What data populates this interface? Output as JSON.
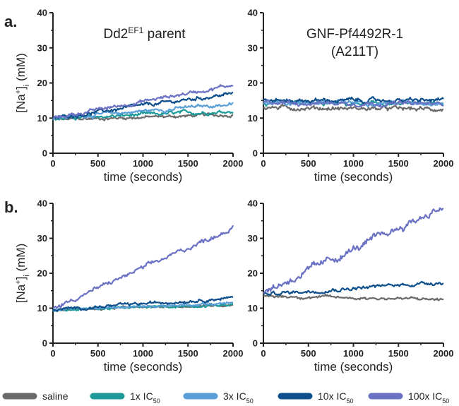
{
  "figure": {
    "panel_a_label": "a.",
    "panel_b_label": "b."
  },
  "chart_data": [
    {
      "type": "line",
      "panel": "a-left",
      "title": "Dd2",
      "title_sup": "EF1",
      "title_suffix": " parent",
      "title_line2": "",
      "xlabel": "time (seconds)",
      "ylabel": "[Na",
      "ylabel_sup": "+",
      "ylabel_close": "]",
      "ylabel_sub": "i",
      "ylabel_unit": " (mM)",
      "xlim": [
        0,
        2000
      ],
      "ylim": [
        0,
        40
      ],
      "xticks": [
        "0",
        "500",
        "1000",
        "1500",
        "2000"
      ],
      "yticks": [
        "0",
        "10",
        "20",
        "30",
        "40"
      ],
      "series": [
        {
          "key": "saline",
          "color": "#6b6b6b",
          "start": 9.5,
          "end": 11,
          "noise": 0.5
        },
        {
          "key": "1x",
          "color": "#1f9a9a",
          "start": 9.8,
          "end": 12,
          "noise": 0.6
        },
        {
          "key": "3x",
          "color": "#5a9fd8",
          "start": 10,
          "end": 14,
          "noise": 0.6
        },
        {
          "key": "10x",
          "color": "#0e4f8c",
          "start": 10,
          "end": 17,
          "noise": 0.6
        },
        {
          "key": "100x",
          "color": "#6b72c4",
          "start": 10,
          "end": 19.5,
          "noise": 0.6
        }
      ]
    },
    {
      "type": "line",
      "panel": "a-right",
      "title": "GNF-Pf4492R-1",
      "title_sup": "",
      "title_suffix": "",
      "title_line2": "(A211T)",
      "xlabel": "time (seconds)",
      "ylabel": "",
      "xlim": [
        0,
        2000
      ],
      "ylim": [
        0,
        40
      ],
      "xticks": [
        "0",
        "500",
        "1000",
        "1500",
        "2000"
      ],
      "yticks": [
        "0",
        "10",
        "20",
        "30",
        "40"
      ],
      "series": [
        {
          "key": "saline",
          "color": "#6b6b6b",
          "start": 13,
          "end": 12.5,
          "noise": 0.7
        },
        {
          "key": "1x",
          "color": "#1f9a9a",
          "start": 14,
          "end": 14,
          "noise": 0.7
        },
        {
          "key": "3x",
          "color": "#5a9fd8",
          "start": 14.5,
          "end": 14.5,
          "noise": 0.7
        },
        {
          "key": "10x",
          "color": "#0e4f8c",
          "start": 15,
          "end": 15,
          "noise": 0.7
        },
        {
          "key": "100x",
          "color": "#6b72c4",
          "start": 14.5,
          "end": 14,
          "noise": 0.7
        }
      ]
    },
    {
      "type": "line",
      "panel": "b-left",
      "title": "",
      "title_sup": "",
      "title_suffix": "",
      "title_line2": "",
      "xlabel": "time (seconds)",
      "ylabel": "[Na",
      "ylabel_sup": "+",
      "ylabel_close": "]",
      "ylabel_sub": "i",
      "ylabel_unit": " (mM)",
      "xlim": [
        0,
        2000
      ],
      "ylim": [
        0,
        40
      ],
      "xticks": [
        "0",
        "500",
        "1000",
        "1500",
        "2000"
      ],
      "yticks": [
        "0",
        "10",
        "20",
        "30",
        "40"
      ],
      "series": [
        {
          "key": "saline",
          "color": "#6b6b6b",
          "start": 9.5,
          "end": 11,
          "noise": 0.4
        },
        {
          "key": "1x",
          "color": "#1f9a9a",
          "start": 9.5,
          "end": 11,
          "noise": 0.4
        },
        {
          "key": "3x",
          "color": "#5a9fd8",
          "start": 9.5,
          "end": 11.5,
          "noise": 0.4
        },
        {
          "key": "10x",
          "color": "#0e4f8c",
          "start": 9.5,
          "end": 13,
          "noise": 0.5
        },
        {
          "key": "100x",
          "color": "#6b72c4",
          "start": 10,
          "end": 33,
          "noise": 0.7
        }
      ]
    },
    {
      "type": "line",
      "panel": "b-right",
      "title": "",
      "title_sup": "",
      "title_suffix": "",
      "title_line2": "",
      "xlabel": "time (seconds)",
      "ylabel": "",
      "xlim": [
        0,
        2000
      ],
      "ylim": [
        0,
        40
      ],
      "xticks": [
        "0",
        "500",
        "1000",
        "1500",
        "2000"
      ],
      "yticks": [
        "0",
        "10",
        "20",
        "30",
        "40"
      ],
      "series": [
        {
          "key": "saline",
          "color": "#6b6b6b",
          "start": 13.5,
          "end": 12.5,
          "noise": 0.5
        },
        {
          "key": "10x",
          "color": "#0e4f8c",
          "start": 14,
          "end": 17.5,
          "noise": 0.6
        },
        {
          "key": "100x",
          "color": "#6b72c4",
          "start": 14.5,
          "end": 39,
          "noise": 1.2
        }
      ]
    }
  ],
  "legend": [
    {
      "key": "saline",
      "label": "saline",
      "sub": "",
      "color": "#6b6b6b"
    },
    {
      "key": "1x",
      "label": "1x IC",
      "sub": "50",
      "color": "#1f9a9a"
    },
    {
      "key": "3x",
      "label": "3x IC",
      "sub": "50",
      "color": "#5a9fd8"
    },
    {
      "key": "10x",
      "label": "10x IC",
      "sub": "50",
      "color": "#0e4f8c"
    },
    {
      "key": "100x",
      "label": "100x IC",
      "sub": "50",
      "color": "#6b72c4"
    }
  ]
}
